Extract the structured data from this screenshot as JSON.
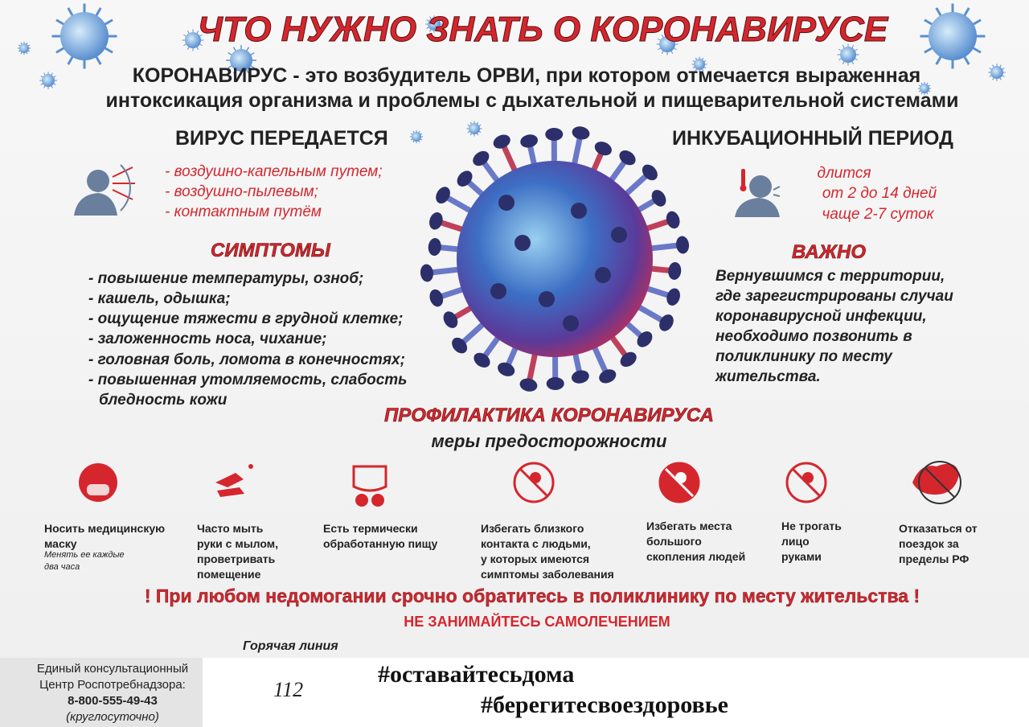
{
  "header": {
    "title": "ЧТО НУЖНО ЗНАТЬ О КОРОНАВИРУСЕ",
    "intro": [
      "КОРОНАВИРУС - это возбудитель ОРВИ, при котором отмечается выраженная",
      "интоксикация организма и проблемы с дыхательной и пищеварительной системами"
    ]
  },
  "transmission": {
    "heading": "ВИРУС ПЕРЕДАЕТСЯ",
    "items": [
      "- воздушно-капельным путем;",
      "- воздушно-пылевым;",
      "- контактным путём"
    ]
  },
  "incubation": {
    "heading": "ИНКУБАЦИОННЫЙ ПЕРИОД",
    "lines": [
      "длится",
      "от 2 до 14 дней",
      "чаще 2-7 суток"
    ]
  },
  "symptoms": {
    "heading": "СИМПТОМЫ",
    "items": [
      "- повышение температуры, озноб;",
      "- кашель, одышка;",
      "- ощущение тяжести в грудной клетке;",
      "- заложенность носа, чихание;",
      "- головная боль, ломота в конечностях;",
      "- повышенная утомляемость, слабость",
      "бледность кожи"
    ]
  },
  "important": {
    "heading": "ВАЖНО",
    "lines": [
      "Вернувшимся с территории,",
      "где зарегистрированы случаи",
      "коронавирусной инфекции,",
      "необходимо позвонить в",
      "поликлинику по месту",
      "жительства."
    ]
  },
  "prevention": {
    "title": "ПРОФИЛАКТИКА КОРОНАВИРУСА",
    "subtitle": "меры предосторожности",
    "items": [
      {
        "lines": [
          "Носить медицинскую",
          "маску"
        ],
        "note": [
          "Менять ее каждые",
          "два часа"
        ]
      },
      {
        "lines": [
          "Часто мыть",
          "руки с мылом,",
          "проветривать",
          "помещение"
        ]
      },
      {
        "lines": [
          "Есть термически",
          "обработанную пищу"
        ]
      },
      {
        "lines": [
          "Избегать близкого",
          "контакта с людьми,",
          "у которых имеются",
          "симптомы заболевания"
        ]
      },
      {
        "lines": [
          "Избегать места",
          "большого",
          "скопления людей"
        ]
      },
      {
        "lines": [
          "Не трогать",
          "лицо",
          "руками"
        ]
      },
      {
        "lines": [
          "Отказаться от",
          "поездок за",
          "пределы РФ"
        ]
      }
    ]
  },
  "warning": {
    "main": "! При любом недомогании срочно обратитесь в поликлинику по месту жительства !",
    "sub": "НЕ ЗАНИМАЙТЕСЬ САМОЛЕЧЕНИЕМ"
  },
  "footer": {
    "hotline_label": "Горячая линия",
    "consult": [
      "Единый консультационный",
      "Центр Роспотребнадзора:",
      "8-800-555-49-43",
      "(круглосуточно)"
    ],
    "emergency": "112",
    "hashtags": [
      "#оставайтесьдома",
      "#берегитесвоездоровье"
    ]
  }
}
